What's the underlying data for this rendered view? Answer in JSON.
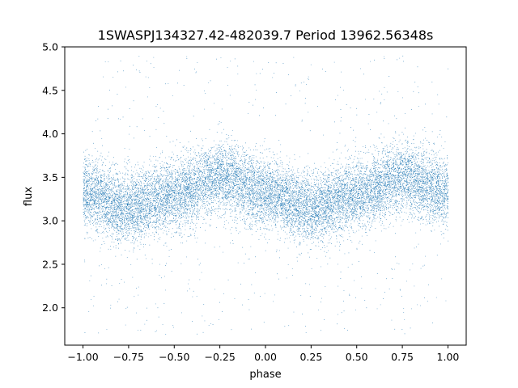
{
  "chart_data": {
    "type": "scatter",
    "title": "1SWASPJ134327.42-482039.7 Period 13962.56348s",
    "xlabel": "phase",
    "ylabel": "flux",
    "xlim": [
      -1.1,
      1.1
    ],
    "ylim": [
      1.57,
      5.0
    ],
    "x_ticks": [
      -1.0,
      -0.75,
      -0.5,
      -0.25,
      0.0,
      0.25,
      0.5,
      0.75,
      1.0
    ],
    "x_tick_labels": [
      "−1.00",
      "−0.75",
      "−0.50",
      "−0.25",
      "0.00",
      "0.25",
      "0.50",
      "0.75",
      "1.00"
    ],
    "y_ticks": [
      2.0,
      2.5,
      3.0,
      3.5,
      4.0,
      4.5,
      5.0
    ],
    "y_tick_labels": [
      "2.0",
      "2.5",
      "3.0",
      "3.5",
      "4.0",
      "4.5",
      "5.0"
    ],
    "grid": false,
    "marker_color": "#1f77b4",
    "series": [
      {
        "x_range": [
          -1.0,
          1.0
        ],
        "trend_x": [
          -1.0,
          -0.75,
          -0.5,
          -0.25,
          0.0,
          0.25,
          0.5,
          0.75,
          1.0
        ],
        "trend_y": [
          3.33,
          3.15,
          3.3,
          3.5,
          3.33,
          3.15,
          3.3,
          3.5,
          3.33
        ],
        "scatter_std": 0.2,
        "outlier_range": [
          1.7,
          4.9
        ],
        "n_points": 16000
      }
    ]
  }
}
